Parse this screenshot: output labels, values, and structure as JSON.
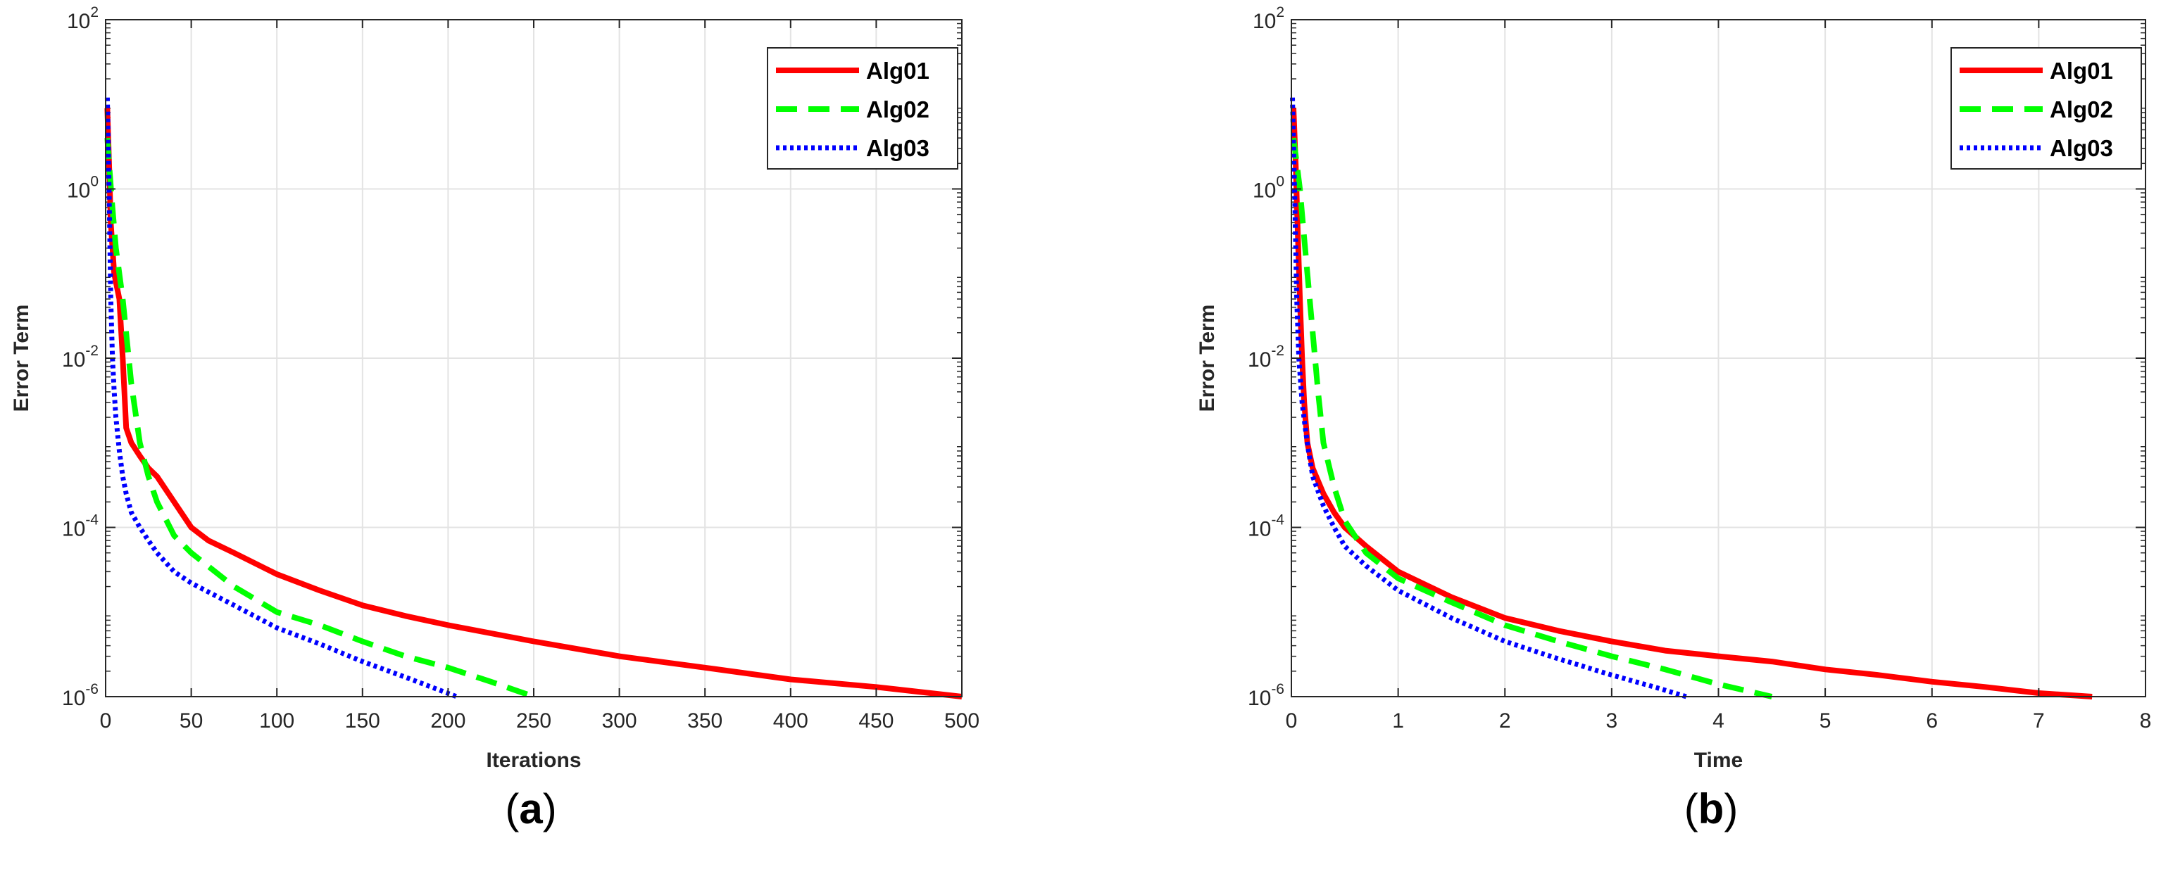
{
  "chart_data": [
    {
      "type": "line",
      "panel_label": "(a)",
      "panel_letter": "a",
      "xlabel": "Iterations",
      "ylabel": "Error Term",
      "xlim": [
        0,
        500
      ],
      "ylim": [
        1e-06,
        100
      ],
      "yscale": "log",
      "grid": true,
      "legend_position": "top-right",
      "xticks": [
        0,
        50,
        100,
        150,
        200,
        250,
        300,
        350,
        400,
        450,
        500
      ],
      "yticks": [
        {
          "value": 1e-06,
          "base": "10",
          "exp": "-6"
        },
        {
          "value": 0.0001,
          "base": "10",
          "exp": "-4"
        },
        {
          "value": 0.01,
          "base": "10",
          "exp": "-2"
        },
        {
          "value": 1,
          "base": "10",
          "exp": "0"
        },
        {
          "value": 100,
          "base": "10",
          "exp": "2"
        }
      ],
      "series": [
        {
          "name": "Alg01",
          "color": "#ff0000",
          "style": "solid",
          "x": [
            1,
            2,
            3,
            5,
            8,
            10,
            12,
            15,
            20,
            25,
            30,
            40,
            50,
            60,
            75,
            100,
            125,
            150,
            175,
            200,
            250,
            300,
            350,
            400,
            450,
            500
          ],
          "y": [
            9,
            2,
            0.4,
            0.1,
            0.05,
            0.01,
            0.0015,
            0.001,
            0.0007,
            0.0005,
            0.0004,
            0.0002,
            0.0001,
            7e-05,
            5e-05,
            2.8e-05,
            1.8e-05,
            1.2e-05,
            9e-06,
            7e-06,
            4.5e-06,
            3e-06,
            2.2e-06,
            1.6e-06,
            1.3e-06,
            1e-06
          ]
        },
        {
          "name": "Alg02",
          "color": "#00ff00",
          "style": "dashed",
          "x": [
            1,
            2,
            4,
            6,
            10,
            15,
            20,
            25,
            30,
            40,
            50,
            75,
            100,
            125,
            150,
            175,
            200,
            225,
            250
          ],
          "y": [
            4,
            2,
            0.6,
            0.2,
            0.05,
            0.005,
            0.001,
            0.0004,
            0.0002,
            8e-05,
            5e-05,
            2e-05,
            1e-05,
            7e-06,
            4.5e-06,
            3e-06,
            2.2e-06,
            1.5e-06,
            1e-06
          ]
        },
        {
          "name": "Alg03",
          "color": "#0000ff",
          "style": "dotted",
          "x": [
            1,
            2,
            3,
            4,
            5,
            6,
            8,
            10,
            12,
            15,
            20,
            25,
            30,
            40,
            50,
            75,
            100,
            125,
            150,
            175,
            205
          ],
          "y": [
            12,
            1,
            0.05,
            0.01,
            0.004,
            0.002,
            0.0008,
            0.0004,
            0.00025,
            0.00015,
            0.0001,
            7e-05,
            5e-05,
            3e-05,
            2.2e-05,
            1.2e-05,
            6.5e-06,
            4.2e-06,
            2.6e-06,
            1.7e-06,
            1e-06
          ]
        }
      ]
    },
    {
      "type": "line",
      "panel_label": "(b)",
      "panel_letter": "b",
      "xlabel": "Time",
      "ylabel": "Error Term",
      "xlim": [
        0,
        8
      ],
      "ylim": [
        1e-06,
        100
      ],
      "yscale": "log",
      "grid": true,
      "legend_position": "top-right",
      "xticks": [
        0,
        1,
        2,
        3,
        4,
        5,
        6,
        7,
        8
      ],
      "yticks": [
        {
          "value": 1e-06,
          "base": "10",
          "exp": "-6"
        },
        {
          "value": 0.0001,
          "base": "10",
          "exp": "-4"
        },
        {
          "value": 0.01,
          "base": "10",
          "exp": "-2"
        },
        {
          "value": 1,
          "base": "10",
          "exp": "0"
        },
        {
          "value": 100,
          "base": "10",
          "exp": "2"
        }
      ],
      "series": [
        {
          "name": "Alg01",
          "color": "#ff0000",
          "style": "solid",
          "x": [
            0.02,
            0.04,
            0.06,
            0.08,
            0.1,
            0.12,
            0.15,
            0.2,
            0.3,
            0.4,
            0.5,
            0.7,
            1.0,
            1.5,
            2.0,
            2.5,
            3.0,
            3.5,
            4.0,
            4.5,
            5.0,
            5.5,
            6.0,
            6.5,
            7.0,
            7.5
          ],
          "y": [
            9,
            2,
            0.3,
            0.05,
            0.01,
            0.003,
            0.001,
            0.0005,
            0.00025,
            0.00015,
            0.0001,
            6e-05,
            3e-05,
            1.5e-05,
            8.5e-06,
            6e-06,
            4.5e-06,
            3.5e-06,
            3e-06,
            2.6e-06,
            2.1e-06,
            1.8e-06,
            1.5e-06,
            1.3e-06,
            1.1e-06,
            1e-06
          ]
        },
        {
          "name": "Alg02",
          "color": "#00ff00",
          "style": "dashed",
          "x": [
            0.02,
            0.05,
            0.08,
            0.1,
            0.15,
            0.2,
            0.25,
            0.3,
            0.4,
            0.5,
            0.7,
            1.0,
            1.5,
            2.0,
            2.5,
            3.0,
            3.5,
            4.0,
            4.5
          ],
          "y": [
            4,
            2,
            1,
            0.5,
            0.1,
            0.02,
            0.004,
            0.001,
            0.0003,
            0.00012,
            5e-05,
            2.5e-05,
            1.3e-05,
            7e-06,
            4.5e-06,
            3e-06,
            2.1e-06,
            1.4e-06,
            1e-06
          ]
        },
        {
          "name": "Alg03",
          "color": "#0000ff",
          "style": "dotted",
          "x": [
            0.01,
            0.03,
            0.05,
            0.07,
            0.1,
            0.13,
            0.16,
            0.2,
            0.3,
            0.4,
            0.5,
            0.7,
            1.0,
            1.5,
            2.0,
            2.5,
            3.0,
            3.4,
            3.7
          ],
          "y": [
            12,
            1,
            0.05,
            0.01,
            0.003,
            0.0015,
            0.0008,
            0.0004,
            0.00018,
            0.0001,
            6e-05,
            3.5e-05,
            1.8e-05,
            8.5e-06,
            4.5e-06,
            2.8e-06,
            1.8e-06,
            1.3e-06,
            1e-06
          ]
        }
      ]
    }
  ]
}
